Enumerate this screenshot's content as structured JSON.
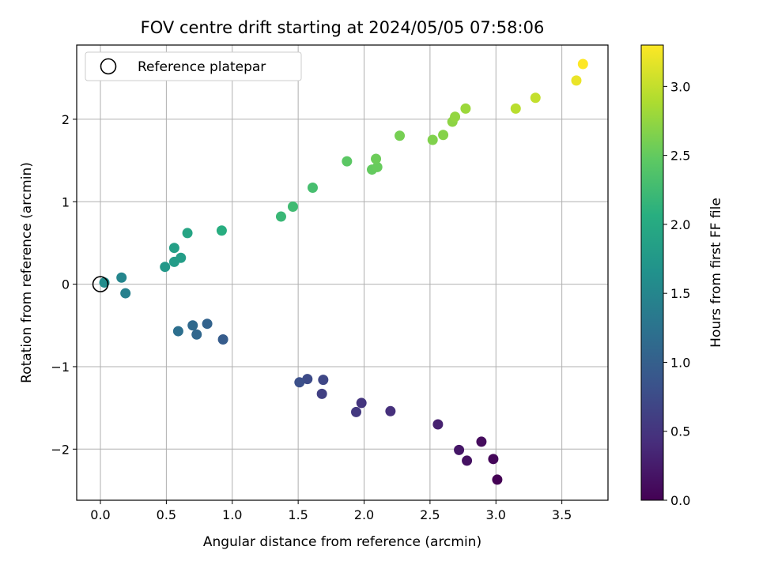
{
  "chart_data": {
    "type": "scatter",
    "title": "FOV centre drift starting at 2024/05/05 07:58:06",
    "xlabel": "Angular distance from reference (arcmin)",
    "ylabel": "Rotation from reference (arcmin)",
    "xlim": [
      -0.18,
      3.85
    ],
    "ylim": [
      -2.62,
      2.9
    ],
    "xticks": [
      0.0,
      0.5,
      1.0,
      1.5,
      2.0,
      2.5,
      3.0,
      3.5
    ],
    "xtick_labels": [
      "0.0",
      "0.5",
      "1.0",
      "1.5",
      "2.0",
      "2.5",
      "3.0",
      "3.5"
    ],
    "yticks": [
      -2,
      -1,
      0,
      1,
      2
    ],
    "ytick_labels": [
      "−2",
      "−1",
      "0",
      "1",
      "2"
    ],
    "grid": true,
    "legend": {
      "placement": "top-left",
      "entries": [
        "Reference platepar"
      ]
    },
    "reference_point": {
      "x": 0.0,
      "y": 0.0
    },
    "colorbar": {
      "label": "Hours from first FF file",
      "colormap": "viridis",
      "range": [
        0.0,
        3.3
      ],
      "ticks": [
        0.0,
        0.5,
        1.0,
        1.5,
        2.0,
        2.5,
        3.0
      ],
      "tick_labels": [
        "0.0",
        "0.5",
        "1.0",
        "1.5",
        "2.0",
        "2.5",
        "3.0"
      ]
    },
    "points": [
      {
        "x": 3.01,
        "y": -2.37,
        "hours": 0.0
      },
      {
        "x": 2.98,
        "y": -2.12,
        "hours": 0.05
      },
      {
        "x": 2.89,
        "y": -1.91,
        "hours": 0.1
      },
      {
        "x": 2.78,
        "y": -2.14,
        "hours": 0.15
      },
      {
        "x": 2.72,
        "y": -2.01,
        "hours": 0.2
      },
      {
        "x": 2.56,
        "y": -1.7,
        "hours": 0.3
      },
      {
        "x": 2.2,
        "y": -1.54,
        "hours": 0.45
      },
      {
        "x": 1.98,
        "y": -1.44,
        "hours": 0.5
      },
      {
        "x": 1.94,
        "y": -1.55,
        "hours": 0.55
      },
      {
        "x": 1.68,
        "y": -1.33,
        "hours": 0.62
      },
      {
        "x": 1.69,
        "y": -1.16,
        "hours": 0.7
      },
      {
        "x": 1.57,
        "y": -1.15,
        "hours": 0.75
      },
      {
        "x": 1.51,
        "y": -1.19,
        "hours": 0.8
      },
      {
        "x": 0.93,
        "y": -0.67,
        "hours": 0.95
      },
      {
        "x": 0.81,
        "y": -0.48,
        "hours": 1.05
      },
      {
        "x": 0.73,
        "y": -0.61,
        "hours": 1.1
      },
      {
        "x": 0.7,
        "y": -0.5,
        "hours": 1.12
      },
      {
        "x": 0.59,
        "y": -0.57,
        "hours": 1.2
      },
      {
        "x": 0.19,
        "y": -0.11,
        "hours": 1.42
      },
      {
        "x": 0.16,
        "y": 0.08,
        "hours": 1.5
      },
      {
        "x": 0.03,
        "y": 0.02,
        "hours": 1.6
      },
      {
        "x": 0.49,
        "y": 0.21,
        "hours": 1.75
      },
      {
        "x": 0.56,
        "y": 0.27,
        "hours": 1.8
      },
      {
        "x": 0.61,
        "y": 0.32,
        "hours": 1.82
      },
      {
        "x": 0.56,
        "y": 0.44,
        "hours": 1.85
      },
      {
        "x": 0.66,
        "y": 0.62,
        "hours": 1.92
      },
      {
        "x": 0.92,
        "y": 0.65,
        "hours": 2.05
      },
      {
        "x": 1.37,
        "y": 0.82,
        "hours": 2.2
      },
      {
        "x": 1.46,
        "y": 0.94,
        "hours": 2.25
      },
      {
        "x": 1.61,
        "y": 1.17,
        "hours": 2.3
      },
      {
        "x": 1.87,
        "y": 1.49,
        "hours": 2.45
      },
      {
        "x": 2.06,
        "y": 1.39,
        "hours": 2.5
      },
      {
        "x": 2.1,
        "y": 1.42,
        "hours": 2.52
      },
      {
        "x": 2.09,
        "y": 1.52,
        "hours": 2.55
      },
      {
        "x": 2.27,
        "y": 1.8,
        "hours": 2.6
      },
      {
        "x": 2.52,
        "y": 1.75,
        "hours": 2.65
      },
      {
        "x": 2.6,
        "y": 1.81,
        "hours": 2.68
      },
      {
        "x": 2.67,
        "y": 1.97,
        "hours": 2.72
      },
      {
        "x": 2.69,
        "y": 2.03,
        "hours": 2.75
      },
      {
        "x": 2.77,
        "y": 2.13,
        "hours": 2.8
      },
      {
        "x": 3.15,
        "y": 2.13,
        "hours": 2.95
      },
      {
        "x": 3.3,
        "y": 2.26,
        "hours": 3.0
      },
      {
        "x": 3.61,
        "y": 2.47,
        "hours": 3.2
      },
      {
        "x": 3.66,
        "y": 2.67,
        "hours": 3.3
      }
    ]
  }
}
